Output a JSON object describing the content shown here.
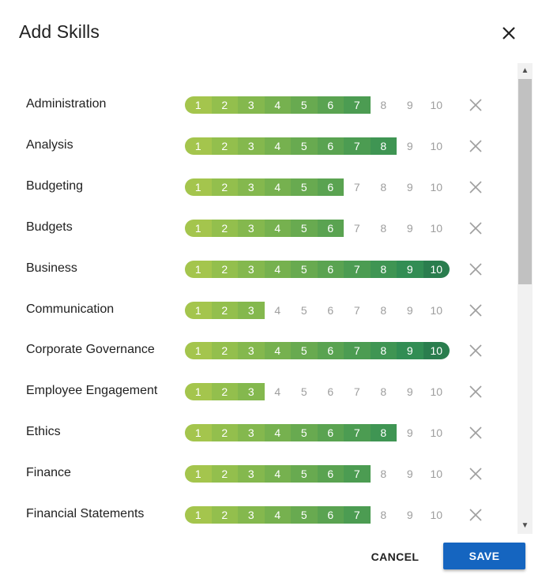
{
  "dialog": {
    "title": "Add Skills",
    "close_icon": "close-icon",
    "cancel_label": "CANCEL",
    "save_label": "SAVE"
  },
  "scale": [
    "1",
    "2",
    "3",
    "4",
    "5",
    "6",
    "7",
    "8",
    "9",
    "10"
  ],
  "colors": {
    "ramp": [
      "#a4c54d",
      "#93bf4d",
      "#84b84e",
      "#76b14f",
      "#68aa50",
      "#5aa351",
      "#4c9c52",
      "#3f9553",
      "#328d54",
      "#2a7d4e"
    ],
    "inactive_text": "#9e9e9e",
    "save_bg": "#1565c0"
  },
  "skills": [
    {
      "name": "Administration",
      "level": 7
    },
    {
      "name": "Analysis",
      "level": 8
    },
    {
      "name": "Budgeting",
      "level": 6
    },
    {
      "name": "Budgets",
      "level": 6
    },
    {
      "name": "Business",
      "level": 10
    },
    {
      "name": "Communication",
      "level": 3
    },
    {
      "name": "Corporate Governance",
      "level": 10
    },
    {
      "name": "Employee Engagement",
      "level": 3
    },
    {
      "name": "Ethics",
      "level": 8
    },
    {
      "name": "Finance",
      "level": 7
    },
    {
      "name": "Financial Statements",
      "level": 7
    }
  ]
}
